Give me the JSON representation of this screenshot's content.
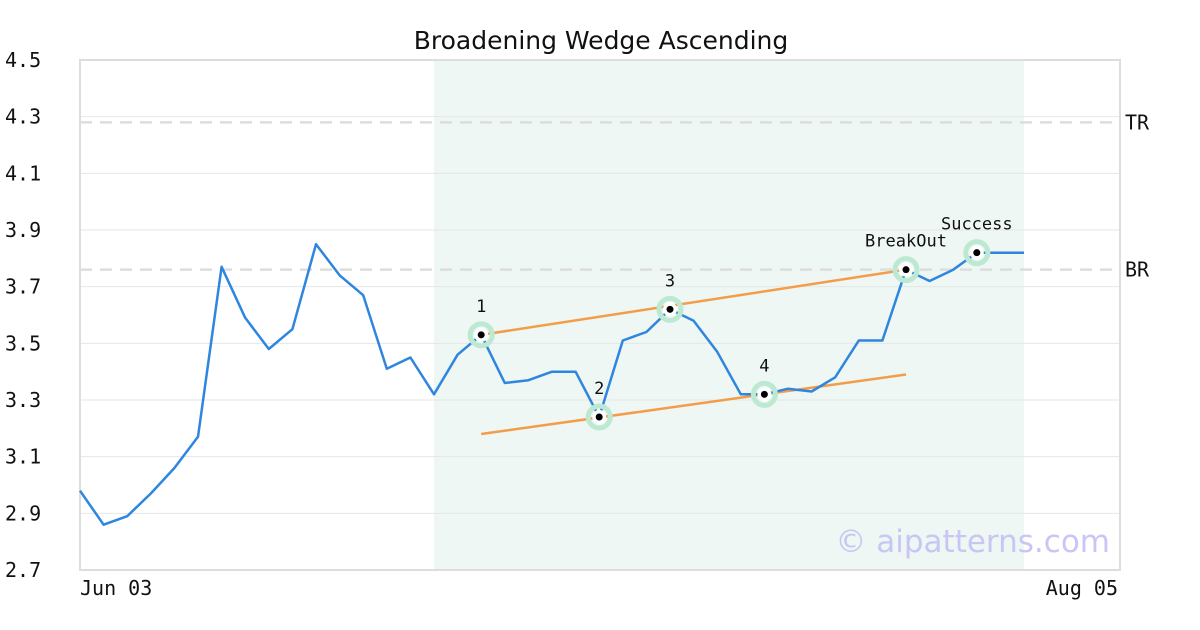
{
  "chart_data": {
    "type": "line",
    "title": "Broadening Wedge Ascending",
    "xlabel": "",
    "ylabel": "",
    "ylim": [
      2.7,
      4.5
    ],
    "yticks": [
      "2.7",
      "2.9",
      "3.1",
      "3.3",
      "3.5",
      "3.7",
      "3.9",
      "4.1",
      "4.3",
      "4.5"
    ],
    "xtick_labels": [
      "Jun 03",
      "Aug 05"
    ],
    "x_count": 45,
    "grid": true,
    "series": [
      {
        "color": "#2e86de",
        "values": [
          2.98,
          2.86,
          2.89,
          2.97,
          3.06,
          3.17,
          3.77,
          3.59,
          3.48,
          3.55,
          3.85,
          3.74,
          3.67,
          3.41,
          3.45,
          3.32,
          3.46,
          3.53,
          3.36,
          3.37,
          3.4,
          3.4,
          3.24,
          3.51,
          3.54,
          3.62,
          3.58,
          3.47,
          3.32,
          3.32,
          3.34,
          3.33,
          3.38,
          3.51,
          3.51,
          3.76,
          3.72,
          3.76,
          3.82,
          3.82,
          3.82
        ]
      }
    ],
    "pattern_region": {
      "start_index": 15,
      "end_index": 40,
      "color": "#eef7f3"
    },
    "levels": [
      {
        "label": "TR",
        "value": 4.28
      },
      {
        "label": "BR",
        "value": 3.76
      }
    ],
    "trendlines": [
      {
        "color": "#f39c4a",
        "x": [
          17,
          35
        ],
        "y": [
          3.53,
          3.76
        ]
      },
      {
        "color": "#f39c4a",
        "x": [
          17,
          35
        ],
        "y": [
          3.18,
          3.39
        ]
      }
    ],
    "points": [
      {
        "label": "1",
        "x": 17,
        "y": 3.53
      },
      {
        "label": "2",
        "x": 22,
        "y": 3.24
      },
      {
        "label": "3",
        "x": 25,
        "y": 3.62
      },
      {
        "label": "4",
        "x": 29,
        "y": 3.32
      },
      {
        "label": "BreakOut",
        "x": 35,
        "y": 3.76
      },
      {
        "label": "Success",
        "x": 38,
        "y": 3.82
      }
    ],
    "watermark": "© aipatterns.com"
  }
}
